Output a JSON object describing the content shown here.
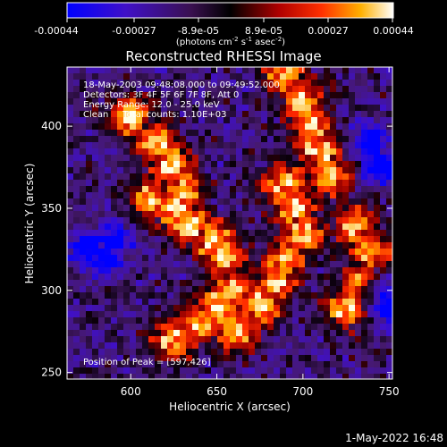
{
  "colorbar": {
    "tick_labels": [
      "-0.00044",
      "-0.00027",
      "-8.9e-05",
      "8.9e-05",
      "0.00027",
      "0.00044"
    ],
    "unit_label_parts": {
      "open": "(photons cm",
      "exp1": "-2",
      "mid1": " s",
      "exp2": "-1",
      "mid2": " asec",
      "exp3": "-2",
      "close": ")"
    },
    "range": [
      -0.00044,
      0.00044
    ]
  },
  "chart_data": {
    "type": "heatmap",
    "title": "Reconstructed RHESSI Image",
    "xlabel": "Heliocentric X (arcsec)",
    "ylabel": "Heliocentric Y (arcsec)",
    "xlim": [
      563,
      752
    ],
    "ylim": [
      246,
      436
    ],
    "xticks": [
      600,
      650,
      700,
      750
    ],
    "yticks": [
      250,
      300,
      350,
      400
    ],
    "colormap": "blue-purple-black-red-yellow-white",
    "color_range": [
      -0.00044,
      0.00044
    ],
    "peak": [
      597,
      426
    ],
    "info_lines": [
      "18-May-2003 09:48:08.000 to 09:49:52.000",
      "Detectors: 3F 4F 5F 6F 7F 8F, Att 0",
      "Energy Range: 12.0 - 25.0 keV",
      "Clean     Total counts: 1.10E+03"
    ],
    "peak_label": "Position of Peak = [597,426]",
    "timestamp": "1-May-2022 16:48",
    "bright_ridges": [
      {
        "name": "upper-left arc",
        "points": [
          [
            600,
            405
          ],
          [
            615,
            390
          ],
          [
            625,
            375
          ],
          [
            630,
            360
          ]
        ]
      },
      {
        "name": "left blob",
        "points": [
          [
            612,
            355
          ],
          [
            625,
            350
          ],
          [
            635,
            340
          ],
          [
            648,
            330
          ],
          [
            655,
            320
          ]
        ]
      },
      {
        "name": "upper-right arc",
        "points": [
          [
            690,
            430
          ],
          [
            700,
            415
          ],
          [
            705,
            400
          ],
          [
            710,
            385
          ],
          [
            715,
            370
          ]
        ]
      },
      {
        "name": "central ridge",
        "points": [
          [
            690,
            365
          ],
          [
            695,
            350
          ],
          [
            700,
            335
          ],
          [
            690,
            320
          ],
          [
            685,
            305
          ],
          [
            675,
            290
          ],
          [
            660,
            275
          ]
        ]
      },
      {
        "name": "lower arm",
        "points": [
          [
            660,
            300
          ],
          [
            650,
            290
          ],
          [
            640,
            280
          ],
          [
            625,
            270
          ]
        ]
      },
      {
        "name": "right patch",
        "points": [
          [
            730,
            340
          ],
          [
            740,
            325
          ],
          [
            735,
            305
          ],
          [
            725,
            290
          ]
        ]
      }
    ],
    "dark_regions": [
      {
        "name": "left blue core",
        "points": [
          [
            575,
            325
          ],
          [
            585,
            318
          ],
          [
            590,
            330
          ]
        ]
      },
      {
        "name": "right blue",
        "points": [
          [
            740,
            390
          ],
          [
            745,
            375
          ]
        ]
      },
      {
        "name": "lower right blue",
        "points": [
          [
            745,
            300
          ],
          [
            748,
            290
          ]
        ]
      }
    ]
  }
}
